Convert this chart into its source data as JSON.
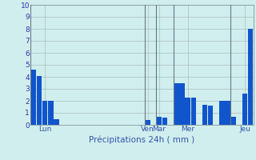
{
  "xlabel": "Précipitations 24h ( mm )",
  "ylim": [
    0,
    10
  ],
  "bar_color": "#1155CC",
  "background_color": "#D0EEEE",
  "grid_color": "#AABBBB",
  "tick_color": "#3333AA",
  "label_color": "#3355AA",
  "xlabel_color": "#3355AA",
  "values": [
    4.6,
    4.1,
    2.0,
    2.0,
    0.5,
    0,
    0,
    0,
    0,
    0,
    0,
    0,
    0,
    0,
    0,
    0,
    0,
    0,
    0,
    0,
    0.4,
    0,
    0.7,
    0.6,
    0,
    3.5,
    3.5,
    2.3,
    2.3,
    0,
    1.7,
    1.6,
    0,
    2.0,
    2.0,
    0.7,
    0,
    2.6,
    8.0
  ],
  "day_labels": [
    {
      "label": "Lun",
      "x": 2
    },
    {
      "label": "Ven",
      "x": 20
    },
    {
      "label": "Mar",
      "x": 22
    },
    {
      "label": "Mer",
      "x": 27
    },
    {
      "label": "Jeu",
      "x": 37
    }
  ],
  "day_vlines_x": [
    19.5,
    21.5,
    24.5,
    34.5
  ],
  "yticks": [
    0,
    1,
    2,
    3,
    4,
    5,
    6,
    7,
    8,
    9,
    10
  ],
  "left_vline_x": -0.5
}
